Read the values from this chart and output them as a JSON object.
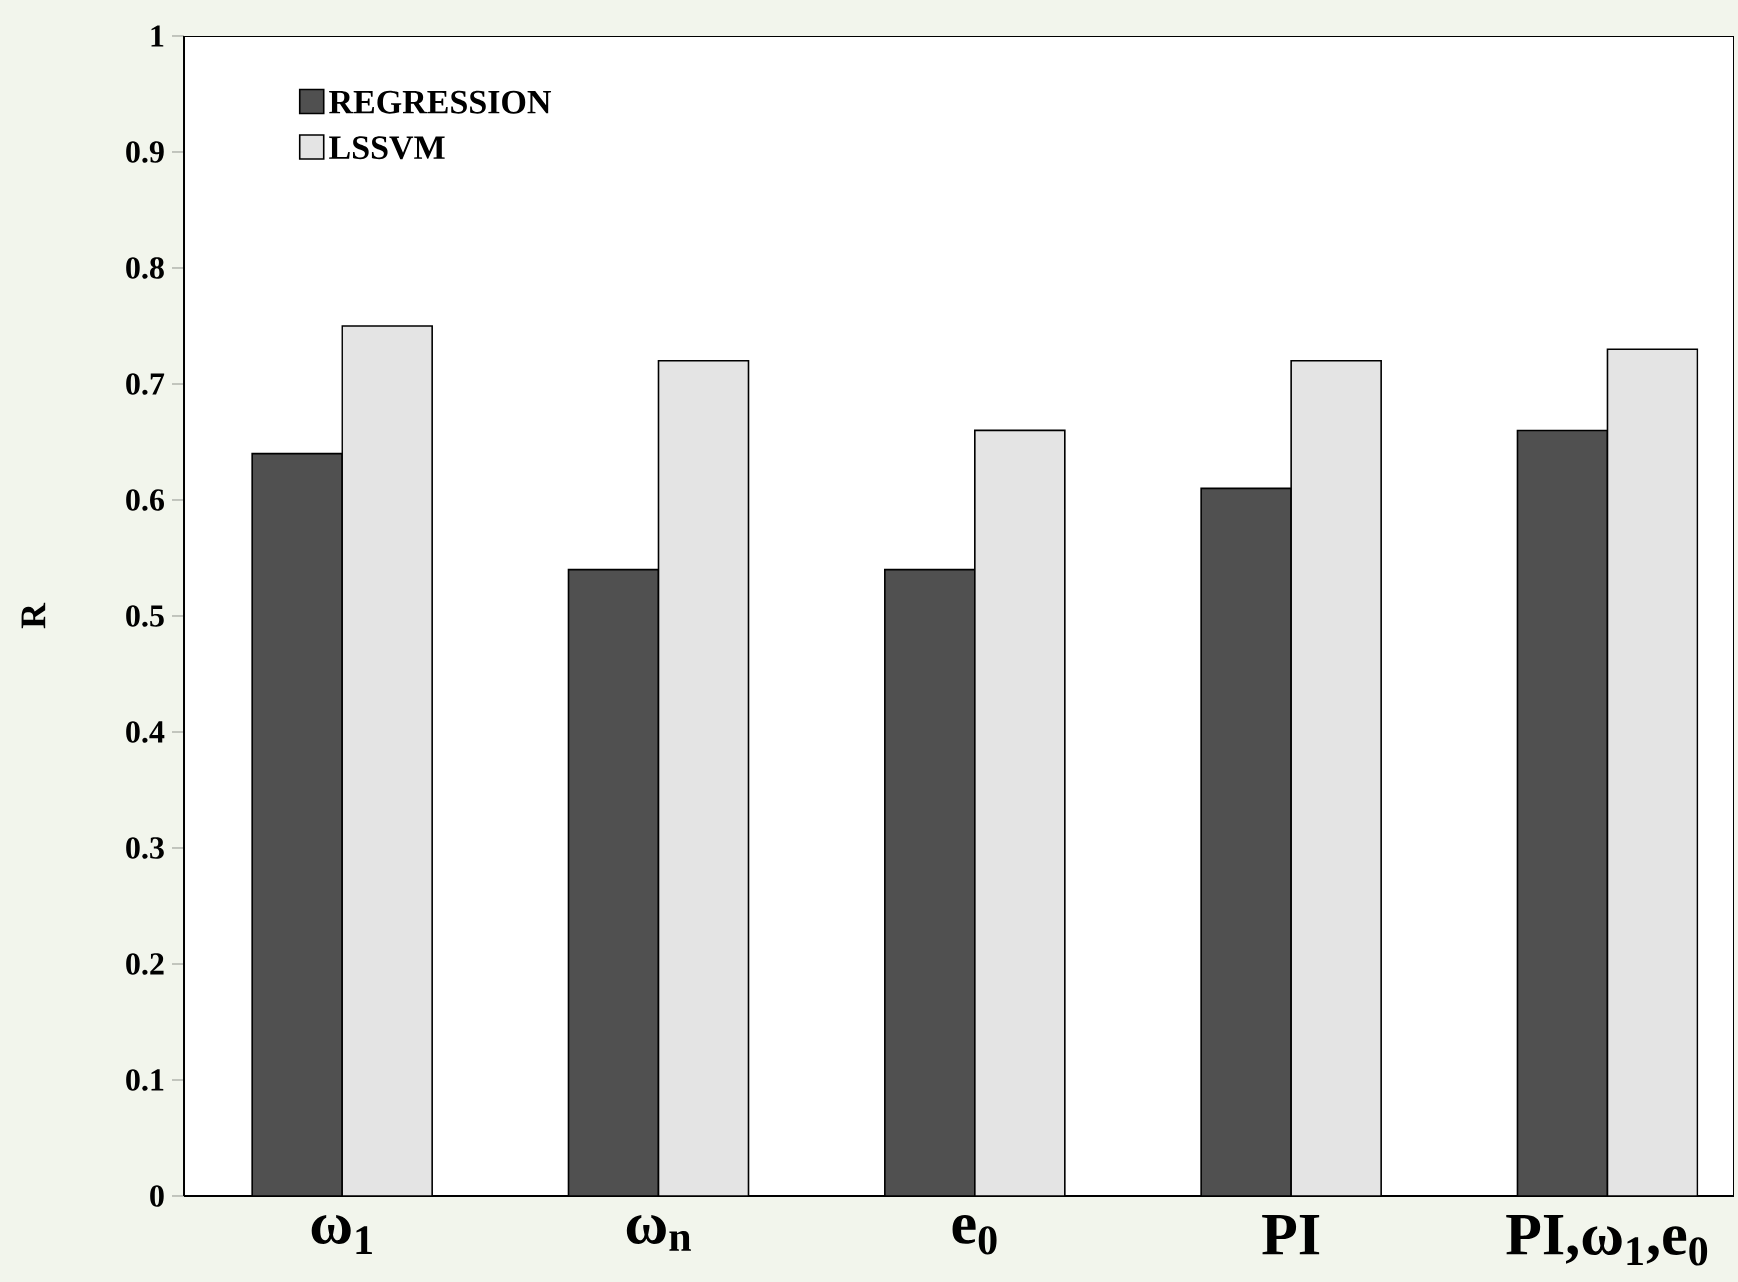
{
  "chart_data": {
    "type": "bar",
    "ylabel": "R",
    "categories": [
      "ω$_{1}$",
      "ω$_{n}$",
      "e$_{0}$",
      "PI",
      "PI,ω$_{1}$,e$_{0}$"
    ],
    "series": [
      {
        "name": "REGRESSION",
        "color": "#505050",
        "values": [
          0.64,
          0.54,
          0.54,
          0.61,
          0.66
        ]
      },
      {
        "name": "LSSVM",
        "color": "#e4e4e4",
        "values": [
          0.75,
          0.72,
          0.66,
          0.72,
          0.73
        ]
      }
    ],
    "ylim": [
      0,
      1
    ],
    "yticks": [
      0,
      0.1,
      0.2,
      0.3,
      0.4,
      0.5,
      0.6,
      0.7,
      0.8,
      0.9,
      1
    ],
    "legend": "top left"
  }
}
